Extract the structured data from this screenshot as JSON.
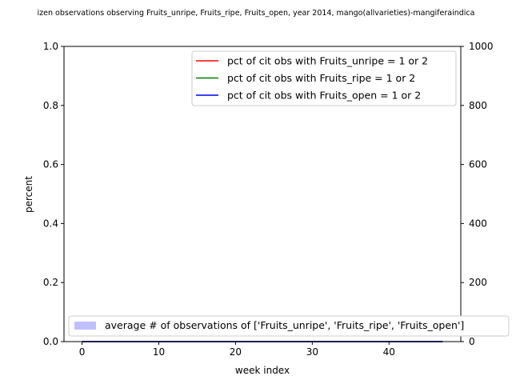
{
  "chart_data": {
    "type": "line",
    "title": "izen observations observing Fruits_unripe, Fruits_ripe, Fruits_open, year 2014, mango(allvarieties)-mangiferaindica",
    "xlabel": "week index",
    "ylabel": "percent",
    "xlim": [
      -2.35,
      49.35
    ],
    "ylim": [
      0,
      1
    ],
    "y2lim": [
      0,
      1000
    ],
    "x_ticks": [
      0,
      10,
      20,
      30,
      40
    ],
    "x_tick_labels": [
      "0",
      "10",
      "20",
      "30",
      "40"
    ],
    "y_ticks": [
      0,
      0.2,
      0.4,
      0.6,
      0.8,
      1.0
    ],
    "y_tick_labels": [
      "0.0",
      "0.2",
      "0.4",
      "0.6",
      "0.8",
      "1.0"
    ],
    "y2_ticks": [
      0,
      200,
      400,
      600,
      800,
      1000
    ],
    "y2_tick_labels": [
      "0",
      "200",
      "400",
      "600",
      "800",
      "1000"
    ],
    "grid": false,
    "legend_placement": "upper right",
    "legend2_placement": "lower left",
    "x": [
      0,
      47
    ],
    "series": [
      {
        "name": "pct of cit obs with Fruits_unripe = 1 or 2",
        "color": "#ff0000",
        "axis": "left",
        "values": [
          0,
          0
        ]
      },
      {
        "name": "pct of cit obs with Fruits_ripe = 1 or 2",
        "color": "#008000",
        "axis": "left",
        "values": [
          0,
          0
        ]
      },
      {
        "name": "pct of cit obs with Fruits_open = 1 or 2",
        "color": "#0000ff",
        "axis": "left",
        "values": [
          0,
          0
        ]
      }
    ],
    "area_series": [
      {
        "name": "average # of observations of ['Fruits_unripe', 'Fruits_ripe', 'Fruits_open']",
        "color": "#bfbfff",
        "axis": "right",
        "values": [
          0,
          0
        ]
      }
    ]
  }
}
